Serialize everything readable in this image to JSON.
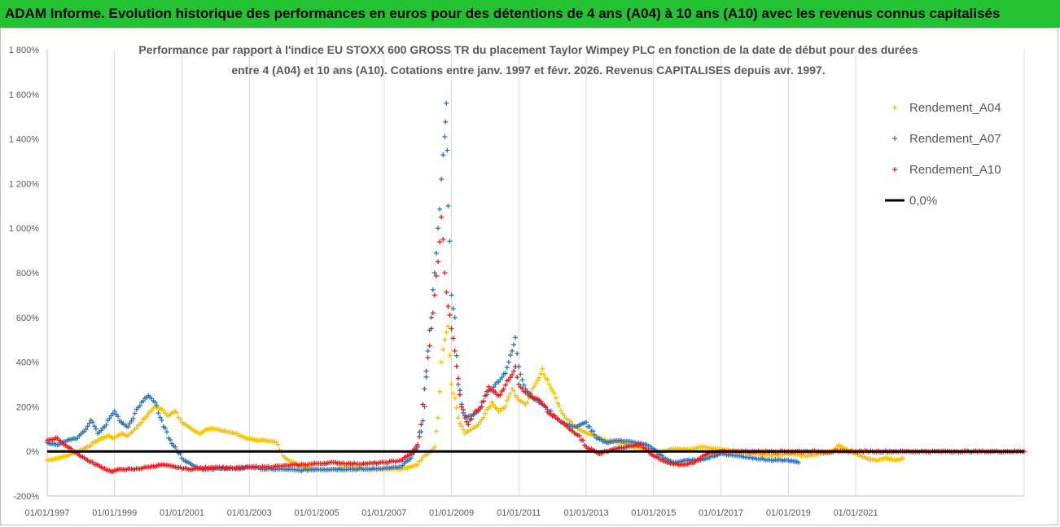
{
  "header": {
    "title": "ADAM Informe. Evolution historique des performances en euros pour des détentions de 4 ans (A04) à 10 ans (A10) avec les revenus connus capitalisés"
  },
  "chart_data": {
    "type": "scatter",
    "title_line1": "Performance par rapport à l'indice EU STOXX 600 GROSS TR  du placement Taylor Wimpey PLC en fonction de la date de début pour des durées",
    "title_line2": "entre 4 (A04) et 10 ans (A10). Cotations entre janv. 1997 et févr. 2026. Revenus CAPITALISES depuis avr. 1997.",
    "xlabel": "",
    "ylabel": "",
    "xlim": [
      1997.0,
      2026.0
    ],
    "ylim": [
      -200,
      1800
    ],
    "y_ticks": [
      -200,
      0,
      200,
      400,
      600,
      800,
      1000,
      1200,
      1400,
      1600,
      1800
    ],
    "y_tick_labels": [
      "-200%",
      "0%",
      "200%",
      "400%",
      "600%",
      "800%",
      "1 000%",
      "1 200%",
      "1 400%",
      "1 600%",
      "1 800%"
    ],
    "x_ticks": [
      1997,
      1999,
      2001,
      2003,
      2005,
      2007,
      2009,
      2011,
      2013,
      2015,
      2017,
      2019,
      2021
    ],
    "x_tick_labels": [
      "01/01/1997",
      "01/01/1999",
      "01/01/2001",
      "01/01/2003",
      "01/01/2005",
      "01/01/2007",
      "01/01/2009",
      "01/01/2011",
      "01/01/2013",
      "01/01/2015",
      "01/01/2017",
      "01/01/2019",
      "01/01/2021"
    ],
    "grid": "vertical",
    "legend_position": "right",
    "legend": [
      "Rendement_A04",
      "Rendement_A07",
      "Rendement_A10",
      "0,0%"
    ],
    "series": [
      {
        "name": "Rendement_A04",
        "color": "#f5c100",
        "marker": "+",
        "points": [
          [
            1997.0,
            -40
          ],
          [
            1997.3,
            -30
          ],
          [
            1997.6,
            -20
          ],
          [
            1997.9,
            0
          ],
          [
            1998.2,
            20
          ],
          [
            1998.5,
            50
          ],
          [
            1998.8,
            70
          ],
          [
            1999.0,
            60
          ],
          [
            1999.2,
            80
          ],
          [
            1999.4,
            70
          ],
          [
            1999.6,
            100
          ],
          [
            1999.8,
            130
          ],
          [
            2000.0,
            170
          ],
          [
            2000.2,
            200
          ],
          [
            2000.4,
            190
          ],
          [
            2000.6,
            160
          ],
          [
            2000.8,
            180
          ],
          [
            2001.0,
            130
          ],
          [
            2001.2,
            110
          ],
          [
            2001.5,
            80
          ],
          [
            2001.8,
            100
          ],
          [
            2002.0,
            100
          ],
          [
            2002.3,
            90
          ],
          [
            2002.6,
            80
          ],
          [
            2002.9,
            60
          ],
          [
            2003.2,
            50
          ],
          [
            2003.5,
            50
          ],
          [
            2003.8,
            40
          ],
          [
            2004.0,
            -20
          ],
          [
            2004.3,
            -50
          ],
          [
            2004.6,
            -70
          ],
          [
            2005.0,
            -80
          ],
          [
            2005.5,
            -80
          ],
          [
            2006.0,
            -70
          ],
          [
            2006.5,
            -80
          ],
          [
            2007.0,
            -80
          ],
          [
            2007.5,
            -80
          ],
          [
            2007.8,
            -70
          ],
          [
            2008.0,
            -60
          ],
          [
            2008.2,
            -20
          ],
          [
            2008.4,
            0
          ],
          [
            2008.5,
            20
          ],
          [
            2008.6,
            150
          ],
          [
            2008.7,
            400
          ],
          [
            2008.8,
            500
          ],
          [
            2008.9,
            560
          ],
          [
            2009.0,
            300
          ],
          [
            2009.2,
            150
          ],
          [
            2009.4,
            80
          ],
          [
            2009.6,
            100
          ],
          [
            2009.8,
            120
          ],
          [
            2010.0,
            170
          ],
          [
            2010.2,
            220
          ],
          [
            2010.4,
            180
          ],
          [
            2010.6,
            200
          ],
          [
            2010.8,
            280
          ],
          [
            2011.0,
            230
          ],
          [
            2011.2,
            210
          ],
          [
            2011.4,
            280
          ],
          [
            2011.6,
            330
          ],
          [
            2011.7,
            370
          ],
          [
            2011.9,
            300
          ],
          [
            2012.1,
            240
          ],
          [
            2012.3,
            170
          ],
          [
            2012.6,
            120
          ],
          [
            2012.9,
            90
          ],
          [
            2013.2,
            70
          ],
          [
            2013.6,
            50
          ],
          [
            2014.0,
            40
          ],
          [
            2014.4,
            20
          ],
          [
            2014.8,
            10
          ],
          [
            2015.2,
            0
          ],
          [
            2015.6,
            10
          ],
          [
            2016.0,
            10
          ],
          [
            2016.5,
            20
          ],
          [
            2017.0,
            10
          ],
          [
            2017.5,
            0
          ],
          [
            2018.0,
            -10
          ],
          [
            2018.5,
            -20
          ],
          [
            2019.0,
            -10
          ],
          [
            2019.5,
            -20
          ],
          [
            2020.0,
            -10
          ],
          [
            2020.3,
            0
          ],
          [
            2020.5,
            30
          ],
          [
            2020.7,
            10
          ],
          [
            2021.0,
            -10
          ],
          [
            2021.3,
            -30
          ],
          [
            2021.6,
            -40
          ],
          [
            2021.9,
            -30
          ],
          [
            2022.2,
            -40
          ],
          [
            2022.4,
            -30
          ]
        ]
      },
      {
        "name": "Rendement_A07",
        "color": "#2e75b6",
        "marker": "+",
        "points": [
          [
            1997.0,
            40
          ],
          [
            1997.3,
            30
          ],
          [
            1997.6,
            50
          ],
          [
            1997.9,
            60
          ],
          [
            1998.1,
            90
          ],
          [
            1998.3,
            140
          ],
          [
            1998.5,
            80
          ],
          [
            1998.7,
            110
          ],
          [
            1998.9,
            160
          ],
          [
            1999.0,
            180
          ],
          [
            1999.2,
            130
          ],
          [
            1999.4,
            110
          ],
          [
            1999.6,
            170
          ],
          [
            1999.8,
            220
          ],
          [
            2000.0,
            250
          ],
          [
            2000.2,
            220
          ],
          [
            2000.4,
            140
          ],
          [
            2000.6,
            60
          ],
          [
            2000.8,
            20
          ],
          [
            2001.0,
            -30
          ],
          [
            2001.3,
            -60
          ],
          [
            2001.6,
            -80
          ],
          [
            2001.9,
            -80
          ],
          [
            2002.2,
            -75
          ],
          [
            2002.6,
            -80
          ],
          [
            2003.0,
            -70
          ],
          [
            2003.5,
            -80
          ],
          [
            2004.0,
            -80
          ],
          [
            2004.5,
            -85
          ],
          [
            2005.0,
            -80
          ],
          [
            2005.5,
            -80
          ],
          [
            2006.0,
            -80
          ],
          [
            2006.5,
            -80
          ],
          [
            2007.0,
            -75
          ],
          [
            2007.5,
            -70
          ],
          [
            2007.8,
            -30
          ],
          [
            2008.0,
            20
          ],
          [
            2008.2,
            200
          ],
          [
            2008.3,
            450
          ],
          [
            2008.4,
            600
          ],
          [
            2008.5,
            800
          ],
          [
            2008.6,
            1000
          ],
          [
            2008.7,
            1220
          ],
          [
            2008.8,
            1410
          ],
          [
            2008.85,
            1560
          ],
          [
            2008.9,
            1100
          ],
          [
            2009.0,
            700
          ],
          [
            2009.1,
            600
          ],
          [
            2009.2,
            300
          ],
          [
            2009.4,
            150
          ],
          [
            2009.6,
            160
          ],
          [
            2009.8,
            180
          ],
          [
            2010.0,
            250
          ],
          [
            2010.3,
            300
          ],
          [
            2010.6,
            350
          ],
          [
            2010.8,
            450
          ],
          [
            2010.9,
            510
          ],
          [
            2011.0,
            380
          ],
          [
            2011.2,
            280
          ],
          [
            2011.5,
            230
          ],
          [
            2011.8,
            200
          ],
          [
            2012.1,
            150
          ],
          [
            2012.4,
            120
          ],
          [
            2012.7,
            110
          ],
          [
            2013.0,
            130
          ],
          [
            2013.3,
            60
          ],
          [
            2013.6,
            40
          ],
          [
            2014.0,
            50
          ],
          [
            2014.4,
            40
          ],
          [
            2014.8,
            30
          ],
          [
            2015.0,
            10
          ],
          [
            2015.3,
            -30
          ],
          [
            2015.6,
            -50
          ],
          [
            2016.0,
            -40
          ],
          [
            2016.3,
            -40
          ],
          [
            2016.6,
            -30
          ],
          [
            2017.0,
            -10
          ],
          [
            2017.5,
            -20
          ],
          [
            2018.0,
            -30
          ],
          [
            2018.5,
            -40
          ],
          [
            2019.0,
            -40
          ],
          [
            2019.3,
            -50
          ]
        ]
      },
      {
        "name": "Rendement_A10",
        "color": "#e81c1c",
        "marker": "+",
        "points": [
          [
            1997.0,
            50
          ],
          [
            1997.3,
            60
          ],
          [
            1997.6,
            20
          ],
          [
            1997.9,
            -10
          ],
          [
            1998.2,
            -40
          ],
          [
            1998.6,
            -70
          ],
          [
            1998.9,
            -90
          ],
          [
            1999.2,
            -80
          ],
          [
            1999.6,
            -80
          ],
          [
            2000.0,
            -70
          ],
          [
            2000.4,
            -60
          ],
          [
            2000.8,
            -70
          ],
          [
            2001.2,
            -80
          ],
          [
            2001.6,
            -75
          ],
          [
            2002.0,
            -70
          ],
          [
            2002.5,
            -75
          ],
          [
            2003.0,
            -70
          ],
          [
            2003.5,
            -70
          ],
          [
            2004.0,
            -65
          ],
          [
            2004.5,
            -60
          ],
          [
            2005.0,
            -55
          ],
          [
            2005.5,
            -50
          ],
          [
            2006.0,
            -55
          ],
          [
            2006.5,
            -55
          ],
          [
            2007.0,
            -50
          ],
          [
            2007.5,
            -40
          ],
          [
            2007.8,
            -10
          ],
          [
            2008.0,
            30
          ],
          [
            2008.1,
            120
          ],
          [
            2008.2,
            280
          ],
          [
            2008.3,
            420
          ],
          [
            2008.4,
            550
          ],
          [
            2008.5,
            700
          ],
          [
            2008.6,
            850
          ],
          [
            2008.7,
            1050
          ],
          [
            2008.8,
            800
          ],
          [
            2008.9,
            650
          ],
          [
            2009.0,
            550
          ],
          [
            2009.1,
            450
          ],
          [
            2009.3,
            200
          ],
          [
            2009.5,
            120
          ],
          [
            2009.7,
            180
          ],
          [
            2009.9,
            200
          ],
          [
            2010.1,
            290
          ],
          [
            2010.4,
            250
          ],
          [
            2010.7,
            320
          ],
          [
            2010.9,
            380
          ],
          [
            2011.0,
            300
          ],
          [
            2011.3,
            250
          ],
          [
            2011.6,
            230
          ],
          [
            2011.9,
            170
          ],
          [
            2012.2,
            140
          ],
          [
            2012.5,
            100
          ],
          [
            2012.8,
            70
          ],
          [
            2013.0,
            20
          ],
          [
            2013.4,
            -10
          ],
          [
            2013.8,
            10
          ],
          [
            2014.2,
            20
          ],
          [
            2014.6,
            30
          ],
          [
            2015.0,
            -20
          ],
          [
            2015.4,
            -50
          ],
          [
            2015.8,
            -60
          ],
          [
            2016.2,
            -50
          ],
          [
            2016.6,
            -10
          ],
          [
            2017.0,
            0
          ],
          [
            2017.5,
            0
          ],
          [
            2018.0,
            0
          ],
          [
            2018.5,
            0
          ],
          [
            2019.0,
            0
          ],
          [
            2019.5,
            0
          ],
          [
            2020.0,
            0
          ],
          [
            2020.5,
            0
          ],
          [
            2021.0,
            0
          ],
          [
            2021.5,
            0
          ],
          [
            2022.0,
            0
          ],
          [
            2022.5,
            0
          ],
          [
            2023.0,
            0
          ],
          [
            2023.5,
            0
          ],
          [
            2024.0,
            0
          ],
          [
            2024.5,
            0
          ],
          [
            2025.0,
            0
          ],
          [
            2025.5,
            0
          ],
          [
            2026.0,
            0
          ]
        ]
      },
      {
        "name": "0,0%",
        "color": "#000000",
        "line": true,
        "points": [
          [
            1997.0,
            0
          ],
          [
            2026.0,
            0
          ]
        ]
      }
    ]
  }
}
